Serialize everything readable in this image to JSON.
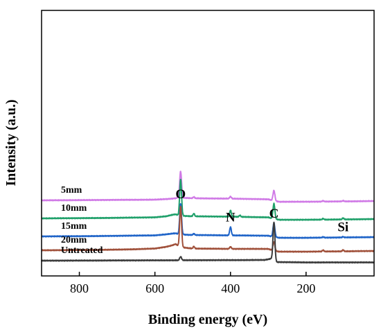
{
  "chart_data": {
    "type": "line",
    "title": "",
    "xlabel": "Binding energy (eV)",
    "ylabel": "Intensity (a.u.)",
    "x_reversed": true,
    "xlim": [
      900,
      20
    ],
    "xticks": [
      800,
      600,
      400,
      200
    ],
    "yticks": [],
    "grid": false,
    "legend": "none",
    "peak_labels": [
      {
        "text": "O",
        "x": 532
      },
      {
        "text": "N",
        "x": 400
      },
      {
        "text": "C",
        "x": 285
      },
      {
        "text": "Si",
        "x": 102
      }
    ],
    "series": [
      {
        "name": "5mm",
        "color": "#d07ae6",
        "offset": 86,
        "baseline": [
          [
            900,
            0
          ],
          [
            750,
            0.5
          ],
          [
            600,
            1
          ],
          [
            565,
            2
          ],
          [
            545,
            3
          ],
          [
            540,
            4
          ],
          [
            520,
            3.5
          ],
          [
            500,
            3
          ],
          [
            400,
            2.5
          ],
          [
            300,
            1.5
          ],
          [
            284,
            -1
          ],
          [
            270,
            -2
          ],
          [
            200,
            -2
          ],
          [
            100,
            -1.5
          ],
          [
            20,
            -1
          ]
        ],
        "peaks": [
          [
            532,
            38,
            2.5
          ],
          [
            497,
            2,
            2
          ],
          [
            400,
            3,
            2.2
          ],
          [
            285,
            15,
            2.5
          ],
          [
            155,
            1.2,
            2
          ],
          [
            102,
            1,
            2
          ]
        ]
      },
      {
        "name": "10mm",
        "color": "#1fa06a",
        "offset": 60,
        "baseline": [
          [
            900,
            0
          ],
          [
            750,
            0.5
          ],
          [
            600,
            1.5
          ],
          [
            570,
            3
          ],
          [
            555,
            5
          ],
          [
            545,
            6
          ],
          [
            537,
            4
          ],
          [
            520,
            3.5
          ],
          [
            500,
            3
          ],
          [
            400,
            2.5
          ],
          [
            300,
            1.5
          ],
          [
            284,
            -1
          ],
          [
            270,
            -2
          ],
          [
            200,
            -2
          ],
          [
            100,
            -1.5
          ],
          [
            20,
            -1
          ]
        ],
        "peaks": [
          [
            532,
            52,
            2.5
          ],
          [
            497,
            4,
            2
          ],
          [
            400,
            9,
            2.2
          ],
          [
            375,
            2,
            2
          ],
          [
            285,
            22,
            2.5
          ],
          [
            155,
            1.5,
            2
          ],
          [
            102,
            2,
            2
          ]
        ]
      },
      {
        "name": "15mm",
        "color": "#1f64c8",
        "offset": 34,
        "baseline": [
          [
            900,
            0
          ],
          [
            750,
            0.5
          ],
          [
            600,
            1.5
          ],
          [
            570,
            3
          ],
          [
            555,
            4
          ],
          [
            545,
            4.5
          ],
          [
            537,
            3
          ],
          [
            520,
            2.5
          ],
          [
            500,
            2
          ],
          [
            400,
            1.5
          ],
          [
            300,
            1
          ],
          [
            284,
            -1
          ],
          [
            270,
            -2
          ],
          [
            200,
            -2
          ],
          [
            100,
            -1.5
          ],
          [
            20,
            -1
          ]
        ],
        "peaks": [
          [
            532,
            44,
            2.5
          ],
          [
            497,
            2,
            2
          ],
          [
            400,
            12,
            2.2
          ],
          [
            285,
            20,
            2.5
          ],
          [
            155,
            1,
            2
          ],
          [
            102,
            1,
            2
          ]
        ]
      },
      {
        "name": "20mm",
        "color": "#a0503a",
        "offset": 14,
        "baseline": [
          [
            900,
            0
          ],
          [
            750,
            0.5
          ],
          [
            650,
            1.5
          ],
          [
            600,
            2.5
          ],
          [
            570,
            5
          ],
          [
            555,
            7
          ],
          [
            545,
            9
          ],
          [
            538,
            6
          ],
          [
            525,
            4
          ],
          [
            500,
            2.5
          ],
          [
            400,
            2
          ],
          [
            300,
            2
          ],
          [
            284,
            -1
          ],
          [
            270,
            -2
          ],
          [
            200,
            -2
          ],
          [
            100,
            -1.5
          ],
          [
            20,
            -1
          ]
        ],
        "peaks": [
          [
            532,
            58,
            2.5
          ],
          [
            497,
            3,
            2
          ],
          [
            400,
            3,
            2.2
          ],
          [
            285,
            13,
            2.5
          ],
          [
            155,
            2,
            2
          ],
          [
            102,
            2,
            2
          ]
        ]
      },
      {
        "name": "Untreated",
        "color": "#3c3c3c",
        "offset": -1,
        "baseline": [
          [
            900,
            0
          ],
          [
            600,
            0.5
          ],
          [
            400,
            0.8
          ],
          [
            310,
            1
          ],
          [
            300,
            2
          ],
          [
            292,
            3
          ],
          [
            286,
            0
          ],
          [
            280,
            -2
          ],
          [
            200,
            -2.5
          ],
          [
            100,
            -2.5
          ],
          [
            20,
            -2.5
          ]
        ],
        "peaks": [
          [
            532,
            5,
            2.5
          ],
          [
            285,
            56,
            2.5
          ]
        ]
      }
    ]
  }
}
